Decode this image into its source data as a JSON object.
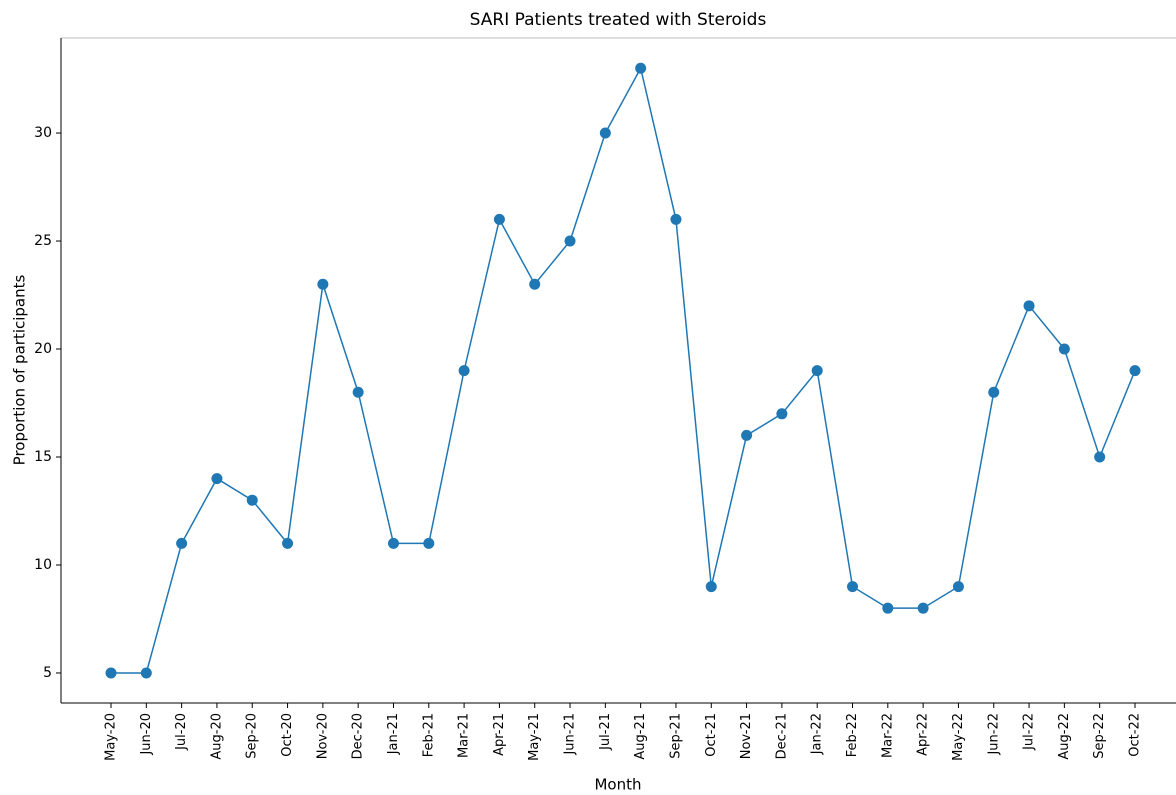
{
  "chart_data": {
    "type": "line",
    "title": "SARI Patients treated with Steroids",
    "x_label": "Month",
    "y_label": "Proportion of participants",
    "categories": [
      "May-20",
      "Jun-20",
      "Jul-20",
      "Aug-20",
      "Sep-20",
      "Oct-20",
      "Nov-20",
      "Dec-20",
      "Jan-21",
      "Feb-21",
      "Mar-21",
      "Apr-21",
      "May-21",
      "Jun-21",
      "Jul-21",
      "Aug-21",
      "Sep-21",
      "Oct-21",
      "Nov-21",
      "Dec-21",
      "Jan-22",
      "Feb-22",
      "Mar-22",
      "Apr-22",
      "May-22",
      "Jun-22",
      "Jul-22",
      "Aug-22",
      "Sep-22",
      "Oct-22"
    ],
    "values": [
      5,
      5,
      11,
      14,
      13,
      11,
      23,
      18,
      11,
      11,
      19,
      26,
      23,
      25,
      30,
      33,
      26,
      9,
      16,
      17,
      19,
      9,
      8,
      8,
      9,
      18,
      22,
      20,
      15,
      19
    ],
    "color": "#1f77b4",
    "markers": true,
    "ylim": [
      3.61,
      34.4
    ],
    "yticks": [
      5,
      10,
      15,
      20,
      25,
      30
    ],
    "grid": false
  }
}
